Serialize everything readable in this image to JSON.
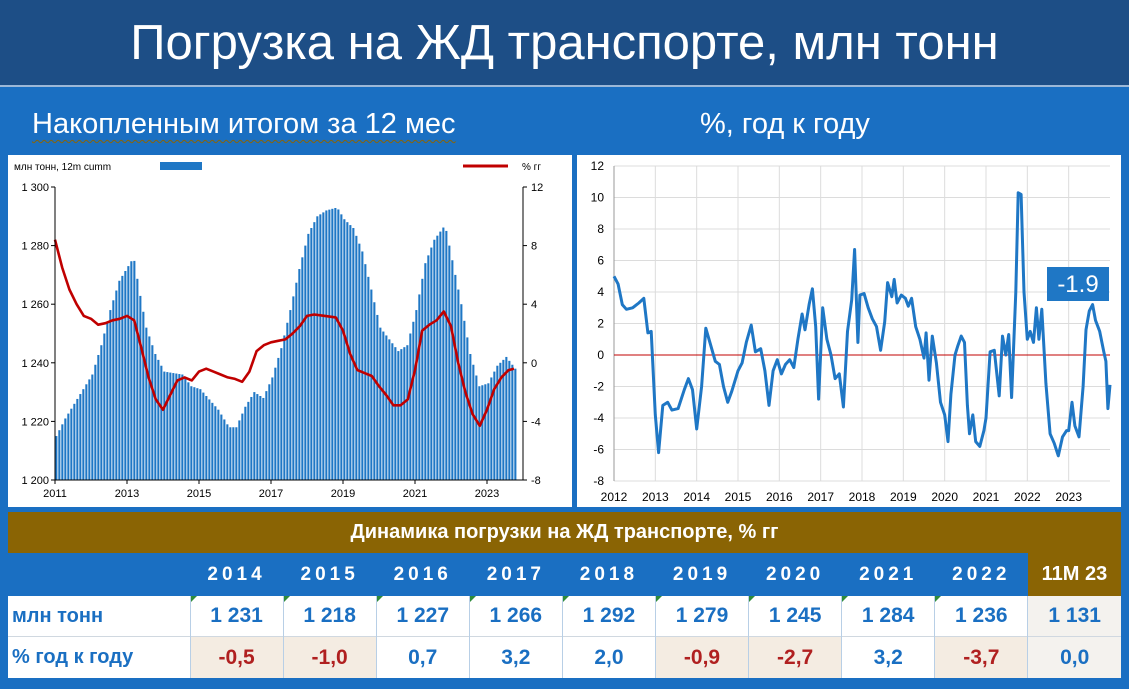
{
  "header": {
    "title": "Погрузка на ЖД транспорте, млн тонн"
  },
  "subtitles": {
    "left": "Накопленным итогом за 12 мес",
    "right": "%, год к году"
  },
  "left_legend": {
    "series_label": "млн тонн, 12m cumm",
    "line_label": "% гг"
  },
  "right_callout": "-1.9",
  "colors": {
    "bar": "#1f77c5",
    "line_left": "#c00000",
    "line_right": "#1f77c5",
    "header": "#1d4e86",
    "gold": "#8a6404",
    "negative_text": "#b02020"
  },
  "table": {
    "title": "Динамика погрузки на ЖД транспорте, % гг",
    "years": [
      "2014",
      "2015",
      "2016",
      "2017",
      "2018",
      "2019",
      "2020",
      "2021",
      "2022",
      "11M 23"
    ],
    "row1_label": "млн тонн",
    "row1": [
      "1 231",
      "1 218",
      "1 227",
      "1 266",
      "1 292",
      "1 279",
      "1 245",
      "1 284",
      "1 236",
      "1 131"
    ],
    "row2_label": "% год к году",
    "row2": [
      "-0,5",
      "-1,0",
      "0,7",
      "3,2",
      "2,0",
      "-0,9",
      "-2,7",
      "3,2",
      "-3,7",
      "0,0"
    ]
  },
  "chart_data": [
    {
      "type": "bar",
      "title": "",
      "y_label": "млн тонн, 12m cumm",
      "y2_label": "% гг",
      "ylim": [
        1200,
        1300
      ],
      "y2lim": [
        -8,
        12
      ],
      "yticks": [
        "1 200",
        "1 220",
        "1 240",
        "1 260",
        "1 280",
        "1 300"
      ],
      "y2ticks": [
        "-8",
        "-4",
        "0",
        "4",
        "8",
        "12"
      ],
      "xticks": [
        "2011",
        "2013",
        "2015",
        "2017",
        "2019",
        "2021",
        "2023"
      ],
      "x_range": [
        2011,
        2024
      ],
      "bar_points": [
        [
          2011.0,
          1215
        ],
        [
          2011.25,
          1221
        ],
        [
          2011.5,
          1226
        ],
        [
          2011.75,
          1231
        ],
        [
          2012.0,
          1236
        ],
        [
          2012.25,
          1246
        ],
        [
          2012.5,
          1258
        ],
        [
          2012.75,
          1268
        ],
        [
          2013.0,
          1273
        ],
        [
          2013.15,
          1276
        ],
        [
          2013.3,
          1265
        ],
        [
          2013.5,
          1252
        ],
        [
          2013.75,
          1243
        ],
        [
          2014.0,
          1237
        ],
        [
          2014.5,
          1236
        ],
        [
          2014.75,
          1232
        ],
        [
          2015.0,
          1231
        ],
        [
          2015.5,
          1224
        ],
        [
          2015.8,
          1218
        ],
        [
          2016.0,
          1218
        ],
        [
          2016.25,
          1225
        ],
        [
          2016.5,
          1230
        ],
        [
          2016.75,
          1228
        ],
        [
          2017.0,
          1235
        ],
        [
          2017.25,
          1245
        ],
        [
          2017.5,
          1258
        ],
        [
          2017.75,
          1272
        ],
        [
          2018.0,
          1284
        ],
        [
          2018.25,
          1290
        ],
        [
          2018.5,
          1292
        ],
        [
          2018.8,
          1293
        ],
        [
          2019.0,
          1289
        ],
        [
          2019.25,
          1286
        ],
        [
          2019.5,
          1278
        ],
        [
          2019.75,
          1265
        ],
        [
          2020.0,
          1252
        ],
        [
          2020.5,
          1244
        ],
        [
          2020.75,
          1246
        ],
        [
          2021.0,
          1258
        ],
        [
          2021.25,
          1274
        ],
        [
          2021.5,
          1282
        ],
        [
          2021.8,
          1287
        ],
        [
          2022.0,
          1275
        ],
        [
          2022.25,
          1260
        ],
        [
          2022.5,
          1243
        ],
        [
          2022.75,
          1232
        ],
        [
          2023.0,
          1233
        ],
        [
          2023.25,
          1239
        ],
        [
          2023.5,
          1242
        ],
        [
          2023.75,
          1238
        ]
      ],
      "line_points": [
        [
          2011.0,
          8.4
        ],
        [
          2011.2,
          6.5
        ],
        [
          2011.4,
          5.0
        ],
        [
          2011.6,
          4.0
        ],
        [
          2011.8,
          3.2
        ],
        [
          2012.0,
          3.0
        ],
        [
          2012.2,
          2.6
        ],
        [
          2012.4,
          2.7
        ],
        [
          2012.6,
          2.9
        ],
        [
          2012.8,
          3.0
        ],
        [
          2013.0,
          3.2
        ],
        [
          2013.2,
          2.9
        ],
        [
          2013.4,
          1.0
        ],
        [
          2013.6,
          -1.0
        ],
        [
          2013.8,
          -2.5
        ],
        [
          2014.0,
          -3.2
        ],
        [
          2014.2,
          -2.2
        ],
        [
          2014.4,
          -1.2
        ],
        [
          2014.6,
          -1.0
        ],
        [
          2014.8,
          -1.2
        ],
        [
          2015.0,
          -0.6
        ],
        [
          2015.2,
          -0.4
        ],
        [
          2015.4,
          -0.6
        ],
        [
          2015.6,
          -0.8
        ],
        [
          2015.8,
          -1.0
        ],
        [
          2016.0,
          -1.1
        ],
        [
          2016.2,
          -1.3
        ],
        [
          2016.4,
          -0.6
        ],
        [
          2016.6,
          0.8
        ],
        [
          2016.8,
          1.2
        ],
        [
          2017.0,
          1.4
        ],
        [
          2017.2,
          1.5
        ],
        [
          2017.4,
          1.6
        ],
        [
          2017.6,
          2.0
        ],
        [
          2017.8,
          2.5
        ],
        [
          2018.0,
          3.2
        ],
        [
          2018.2,
          3.3
        ],
        [
          2018.5,
          3.2
        ],
        [
          2018.8,
          3.1
        ],
        [
          2019.0,
          2.2
        ],
        [
          2019.2,
          0.6
        ],
        [
          2019.4,
          -0.5
        ],
        [
          2019.6,
          -0.7
        ],
        [
          2019.8,
          -0.9
        ],
        [
          2020.0,
          -1.6
        ],
        [
          2020.2,
          -2.2
        ],
        [
          2020.4,
          -2.9
        ],
        [
          2020.6,
          -2.9
        ],
        [
          2020.8,
          -2.5
        ],
        [
          2021.0,
          -0.5
        ],
        [
          2021.2,
          2.2
        ],
        [
          2021.4,
          2.6
        ],
        [
          2021.6,
          2.9
        ],
        [
          2021.8,
          3.5
        ],
        [
          2022.0,
          2.5
        ],
        [
          2022.2,
          0.0
        ],
        [
          2022.4,
          -2.0
        ],
        [
          2022.6,
          -3.5
        ],
        [
          2022.8,
          -4.3
        ],
        [
          2023.0,
          -3.2
        ],
        [
          2023.2,
          -1.8
        ],
        [
          2023.4,
          -1.0
        ],
        [
          2023.6,
          -0.5
        ],
        [
          2023.75,
          -0.4
        ]
      ]
    },
    {
      "type": "line",
      "title": "",
      "ylim": [
        -8,
        12
      ],
      "yticks": [
        "-8",
        "-6",
        "-4",
        "-2",
        "0",
        "2",
        "4",
        "6",
        "8",
        "10",
        "12"
      ],
      "xticks": [
        "2012",
        "2013",
        "2014",
        "2015",
        "2016",
        "2017",
        "2018",
        "2019",
        "2020",
        "2021",
        "2022",
        "2023"
      ],
      "x_range": [
        2012,
        2024
      ],
      "points": [
        [
          2012.0,
          5.0
        ],
        [
          2012.1,
          4.5
        ],
        [
          2012.2,
          3.2
        ],
        [
          2012.3,
          2.9
        ],
        [
          2012.45,
          3.0
        ],
        [
          2012.6,
          3.3
        ],
        [
          2012.72,
          3.6
        ],
        [
          2012.82,
          1.4
        ],
        [
          2012.9,
          1.5
        ],
        [
          2013.0,
          -3.8
        ],
        [
          2013.08,
          -6.2
        ],
        [
          2013.18,
          -3.2
        ],
        [
          2013.3,
          -3.0
        ],
        [
          2013.4,
          -3.5
        ],
        [
          2013.55,
          -3.4
        ],
        [
          2013.7,
          -2.2
        ],
        [
          2013.8,
          -1.5
        ],
        [
          2013.9,
          -2.2
        ],
        [
          2014.0,
          -4.7
        ],
        [
          2014.12,
          -2.0
        ],
        [
          2014.22,
          1.7
        ],
        [
          2014.32,
          0.8
        ],
        [
          2014.45,
          -0.4
        ],
        [
          2014.55,
          -0.6
        ],
        [
          2014.65,
          -2.0
        ],
        [
          2014.75,
          -3.0
        ],
        [
          2014.85,
          -2.3
        ],
        [
          2015.0,
          -1.0
        ],
        [
          2015.1,
          -0.5
        ],
        [
          2015.2,
          0.8
        ],
        [
          2015.32,
          1.9
        ],
        [
          2015.42,
          0.2
        ],
        [
          2015.55,
          0.4
        ],
        [
          2015.65,
          -1.0
        ],
        [
          2015.75,
          -3.2
        ],
        [
          2015.85,
          -1.0
        ],
        [
          2015.95,
          -0.3
        ],
        [
          2016.05,
          -1.2
        ],
        [
          2016.15,
          -0.6
        ],
        [
          2016.25,
          -0.3
        ],
        [
          2016.35,
          -0.8
        ],
        [
          2016.45,
          1.0
        ],
        [
          2016.55,
          2.6
        ],
        [
          2016.62,
          1.6
        ],
        [
          2016.72,
          3.2
        ],
        [
          2016.8,
          4.2
        ],
        [
          2016.88,
          1.8
        ],
        [
          2016.95,
          -2.8
        ],
        [
          2017.05,
          3.0
        ],
        [
          2017.15,
          1.0
        ],
        [
          2017.25,
          0.0
        ],
        [
          2017.35,
          -1.5
        ],
        [
          2017.45,
          -1.2
        ],
        [
          2017.55,
          -3.3
        ],
        [
          2017.65,
          1.5
        ],
        [
          2017.75,
          3.5
        ],
        [
          2017.82,
          6.7
        ],
        [
          2017.9,
          0.8
        ],
        [
          2017.95,
          3.8
        ],
        [
          2018.05,
          3.9
        ],
        [
          2018.15,
          3.0
        ],
        [
          2018.25,
          2.3
        ],
        [
          2018.35,
          1.8
        ],
        [
          2018.45,
          0.3
        ],
        [
          2018.55,
          2.1
        ],
        [
          2018.62,
          4.6
        ],
        [
          2018.72,
          3.7
        ],
        [
          2018.78,
          4.8
        ],
        [
          2018.85,
          3.3
        ],
        [
          2018.95,
          3.8
        ],
        [
          2019.05,
          3.6
        ],
        [
          2019.12,
          3.1
        ],
        [
          2019.2,
          3.6
        ],
        [
          2019.3,
          1.8
        ],
        [
          2019.4,
          1.0
        ],
        [
          2019.5,
          -0.2
        ],
        [
          2019.55,
          1.4
        ],
        [
          2019.62,
          -1.6
        ],
        [
          2019.7,
          1.2
        ],
        [
          2019.8,
          -0.5
        ],
        [
          2019.9,
          -3.0
        ],
        [
          2020.0,
          -3.8
        ],
        [
          2020.08,
          -5.5
        ],
        [
          2020.15,
          -2.5
        ],
        [
          2020.25,
          0.0
        ],
        [
          2020.32,
          0.6
        ],
        [
          2020.4,
          1.2
        ],
        [
          2020.48,
          0.8
        ],
        [
          2020.55,
          -3.2
        ],
        [
          2020.6,
          -5.0
        ],
        [
          2020.68,
          -3.8
        ],
        [
          2020.75,
          -5.5
        ],
        [
          2020.85,
          -5.8
        ],
        [
          2020.95,
          -4.8
        ],
        [
          2021.0,
          -4.0
        ],
        [
          2021.1,
          0.2
        ],
        [
          2021.2,
          0.3
        ],
        [
          2021.32,
          -2.6
        ],
        [
          2021.4,
          1.2
        ],
        [
          2021.48,
          0.0
        ],
        [
          2021.55,
          1.3
        ],
        [
          2021.62,
          -2.7
        ],
        [
          2021.72,
          4.0
        ],
        [
          2021.78,
          10.3
        ],
        [
          2021.85,
          10.2
        ],
        [
          2021.92,
          4.0
        ],
        [
          2022.0,
          1.0
        ],
        [
          2022.07,
          1.5
        ],
        [
          2022.15,
          0.8
        ],
        [
          2022.22,
          3.0
        ],
        [
          2022.28,
          1.0
        ],
        [
          2022.35,
          2.9
        ],
        [
          2022.45,
          -1.8
        ],
        [
          2022.55,
          -5.0
        ],
        [
          2022.65,
          -5.6
        ],
        [
          2022.75,
          -6.4
        ],
        [
          2022.85,
          -5.2
        ],
        [
          2022.95,
          -4.8
        ],
        [
          2023.0,
          -4.8
        ],
        [
          2023.08,
          -3.0
        ],
        [
          2023.15,
          -4.5
        ],
        [
          2023.25,
          -5.2
        ],
        [
          2023.35,
          -2.0
        ],
        [
          2023.42,
          1.6
        ],
        [
          2023.5,
          2.8
        ],
        [
          2023.58,
          3.2
        ],
        [
          2023.65,
          2.2
        ],
        [
          2023.75,
          1.5
        ],
        [
          2023.85,
          0.2
        ],
        [
          2023.9,
          -0.4
        ],
        [
          2023.95,
          -3.4
        ],
        [
          2024.0,
          -1.9
        ]
      ]
    }
  ]
}
